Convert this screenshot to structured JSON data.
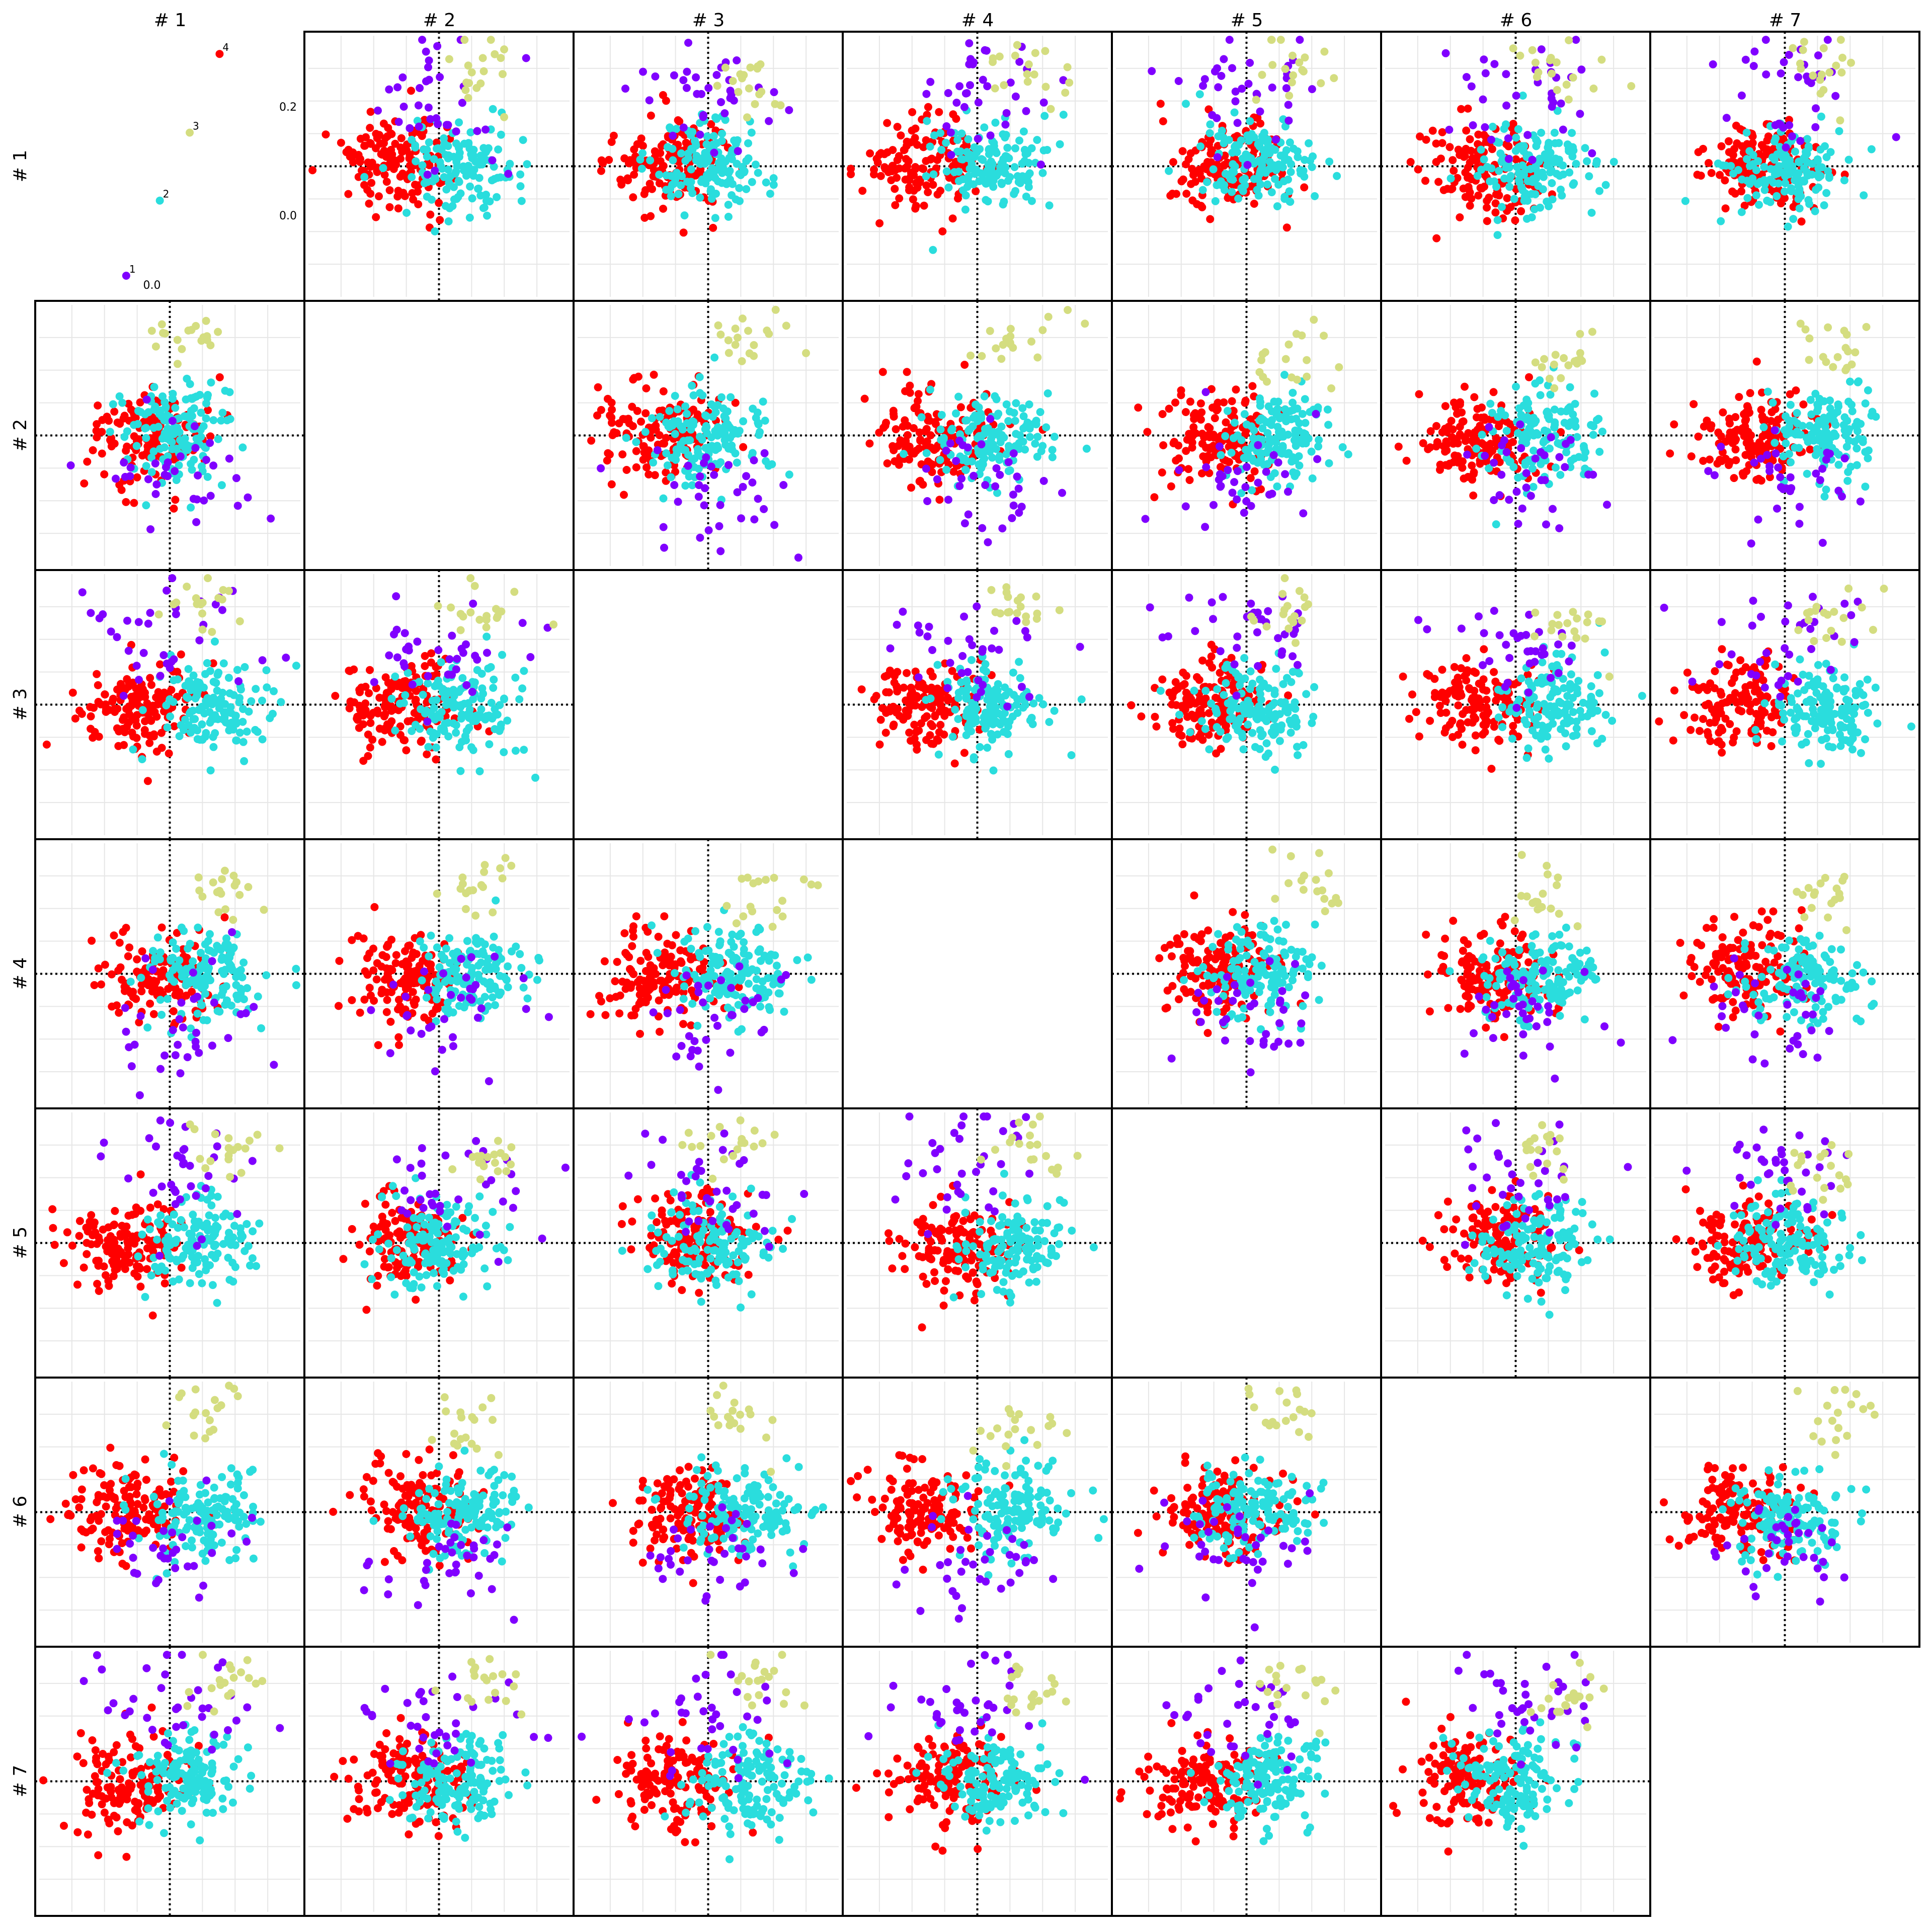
{
  "chart_data": {
    "type": "scatter",
    "title": "",
    "subtitle": "",
    "grid": true,
    "zero_lines": "dotted",
    "column_headers": [
      "# 1",
      "# 2",
      "# 3",
      "# 4",
      "# 5",
      "# 6",
      "# 7"
    ],
    "row_headers": [
      "# 1",
      "# 2",
      "# 3",
      "# 4",
      "# 5",
      "# 6",
      "# 7"
    ],
    "y_ticks_row1": [
      "0.2",
      "0.0"
    ],
    "x_ticks_col1": [
      "0.0"
    ],
    "cluster_colors": {
      "1": "#8000ff",
      "2": "#2adddd",
      "3": "#d4dd80",
      "4": "#ff0000"
    },
    "legend_points": [
      {
        "label": "1",
        "cluster": "1",
        "x": -0.11,
        "y": -0.32
      },
      {
        "label": "2",
        "cluster": "2",
        "x": -0.02,
        "y": -0.11
      },
      {
        "label": "3",
        "cluster": "3",
        "x": 0.06,
        "y": 0.08
      },
      {
        "label": "4",
        "cluster": "4",
        "x": 0.14,
        "y": 0.3
      }
    ],
    "series": [
      {
        "cluster": "4",
        "points_per_panel": 140
      },
      {
        "cluster": "2",
        "points_per_panel": 140
      },
      {
        "cluster": "1",
        "points_per_panel": 35
      },
      {
        "cluster": "3",
        "points_per_panel": 18
      }
    ],
    "axis_range": [
      -0.32,
      0.32
    ]
  }
}
